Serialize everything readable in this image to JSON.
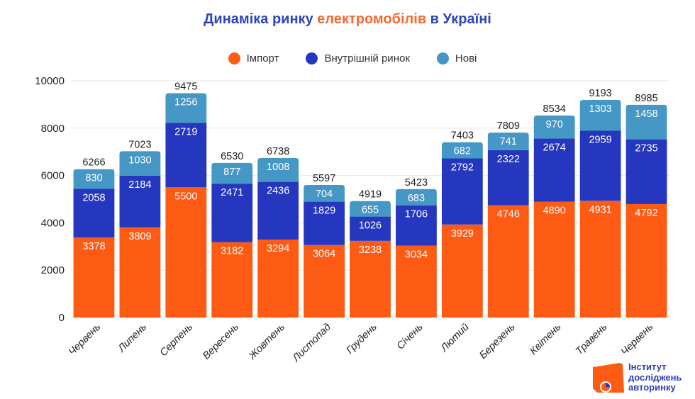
{
  "title": {
    "part1": "Динаміка ринку ",
    "part2": "електромобілів",
    "part3": " в Україні"
  },
  "colors": {
    "import": "#fd5a14",
    "domestic": "#2537bf",
    "new": "#4597c6",
    "title_blue": "#2d45b5",
    "title_orange": "#f26a33"
  },
  "logo": {
    "line1": "Інститут",
    "line2": "досліджень",
    "line3": "авторинку"
  },
  "chart_data": {
    "type": "bar",
    "stacked": true,
    "title": "Динаміка ринку електромобілів в Україні",
    "xlabel": "",
    "ylabel": "",
    "ylim": [
      0,
      10000
    ],
    "yticks": [
      0,
      2000,
      4000,
      6000,
      8000,
      10000
    ],
    "grid": true,
    "legend_position": "top-center",
    "categories": [
      "Червень",
      "Липень",
      "Серпень",
      "Вересень",
      "Жовтень",
      "Листопад",
      "Грудень",
      "Січень",
      "Лютий",
      "Березень",
      "Квітень",
      "Травень",
      "Червень"
    ],
    "series": [
      {
        "name": "Імпорт",
        "color": "#fd5a14",
        "values": [
          3378,
          3809,
          5500,
          3182,
          3294,
          3064,
          3238,
          3034,
          3929,
          4746,
          4890,
          4931,
          4792
        ]
      },
      {
        "name": "Внутрішній ринок",
        "color": "#2537bf",
        "values": [
          2058,
          2184,
          2719,
          2471,
          2436,
          1829,
          1026,
          1706,
          2792,
          2322,
          2674,
          2959,
          2735
        ]
      },
      {
        "name": "Нові",
        "color": "#4597c6",
        "values": [
          830,
          1030,
          1256,
          877,
          1008,
          704,
          655,
          683,
          682,
          741,
          970,
          1303,
          1458
        ]
      }
    ],
    "totals": [
      6266,
      7023,
      9475,
      6530,
      6738,
      5597,
      4919,
      5423,
      7403,
      7809,
      8534,
      9193,
      8985
    ]
  }
}
